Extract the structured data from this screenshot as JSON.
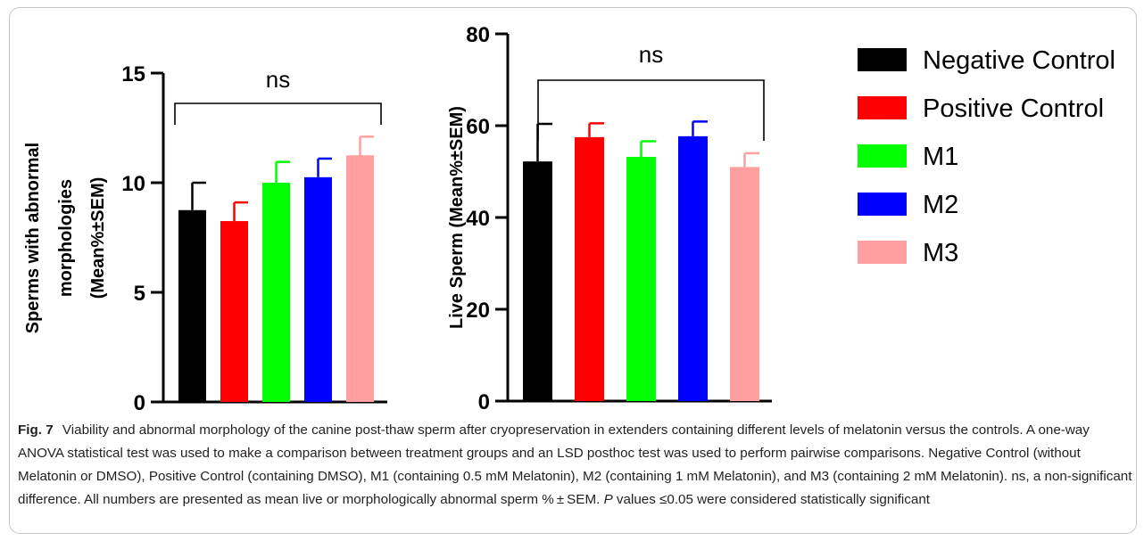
{
  "chart_data": [
    {
      "type": "bar",
      "ylabel": [
        "Sperms with abnormal",
        "morphologies",
        "(Mean%±SEM)"
      ],
      "ylim": [
        0,
        15
      ],
      "yticks": [
        0,
        5,
        10,
        15
      ],
      "categories": [
        "Negative Control",
        "Positive Control",
        "M1",
        "M2",
        "M3"
      ],
      "values": [
        8.75,
        8.25,
        10.0,
        10.25,
        11.25
      ],
      "errors": [
        1.25,
        0.85,
        0.95,
        0.85,
        0.85
      ],
      "annotation": "ns"
    },
    {
      "type": "bar",
      "ylabel": [
        "Live Sperm (Mean%±SEM)"
      ],
      "ylim": [
        0,
        80
      ],
      "yticks": [
        0,
        20,
        40,
        60,
        80
      ],
      "categories": [
        "Negative Control",
        "Positive Control",
        "M1",
        "M2",
        "M3"
      ],
      "values": [
        52.2,
        57.5,
        53.2,
        57.7,
        51.0
      ],
      "errors": [
        8.2,
        3.0,
        3.4,
        3.2,
        3.0
      ],
      "annotation": "ns"
    }
  ],
  "legend": [
    {
      "label": "Negative Control",
      "color": "#000000"
    },
    {
      "label": "Positive Control",
      "color": "#ff0000"
    },
    {
      "label": "M1",
      "color": "#00ff00"
    },
    {
      "label": "M2",
      "color": "#0000ff"
    },
    {
      "label": "M3",
      "color": "#ff9f9f"
    }
  ],
  "caption": {
    "figure_label": "Fig. 7",
    "text_main": "Viability and abnormal morphology of the canine post-thaw sperm after cryopreservation in extenders containing different levels of melatonin versus the controls. A one-way ANOVA statistical test was used to make a comparison between treatment groups and an LSD posthoc test was used to perform pairwise comparisons. Negative Control (without Melatonin or DMSO), Positive Control (containing DMSO), M1 (containing 0.5 mM Melatonin), M2 (containing 1 mM Melatonin), and M3 (containing 2 mM Melatonin). ns, a non-significant difference. All numbers are presented as mean live or morphologically abnormal sperm % ± SEM.",
    "p_italic": "P",
    "text_end": " values ≤0.05 were considered statistically significant"
  }
}
